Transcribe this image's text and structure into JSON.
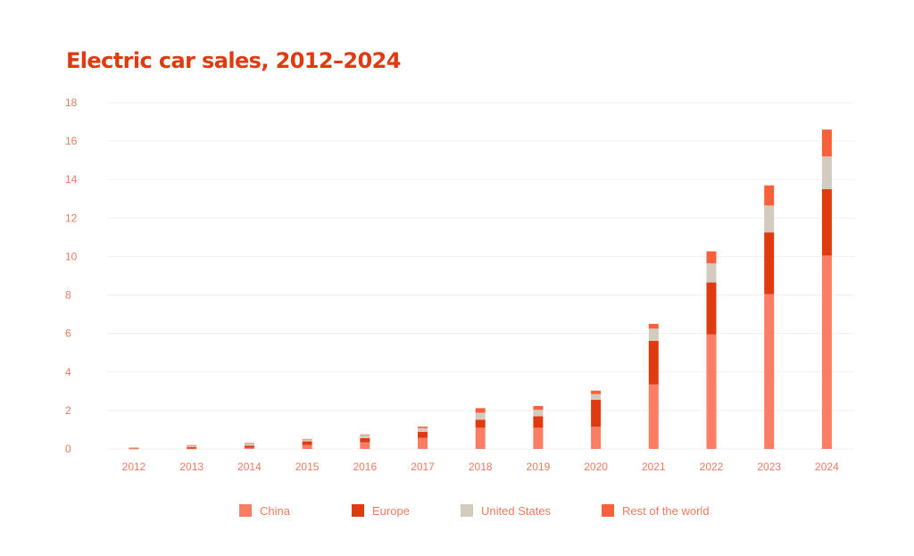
{
  "chart_data": {
    "type": "bar",
    "stacked": true,
    "title": "Electric car sales, 2012–2024",
    "xlabel": "",
    "ylabel": "",
    "ylim": [
      0,
      18
    ],
    "yticks": [
      0,
      2,
      4,
      6,
      8,
      10,
      12,
      14,
      16,
      18
    ],
    "grid": true,
    "legend_position": "bottom",
    "categories": [
      "2012",
      "2013",
      "2014",
      "2015",
      "2016",
      "2017",
      "2018",
      "2019",
      "2020",
      "2021",
      "2022",
      "2023",
      "2024"
    ],
    "series": [
      {
        "name": "China",
        "values": [
          0.01,
          0.02,
          0.07,
          0.21,
          0.34,
          0.58,
          1.1,
          1.1,
          1.15,
          3.35,
          5.95,
          8.05,
          10.05
        ]
      },
      {
        "name": "Europe",
        "values": [
          0.03,
          0.07,
          0.1,
          0.18,
          0.22,
          0.31,
          0.42,
          0.6,
          1.4,
          2.27,
          2.7,
          3.2,
          3.45
        ]
      },
      {
        "name": "United States",
        "values": [
          0.05,
          0.1,
          0.12,
          0.11,
          0.16,
          0.2,
          0.36,
          0.33,
          0.3,
          0.63,
          1.0,
          1.4,
          1.7
        ]
      },
      {
        "name": "Rest of the world",
        "values": [
          0.0,
          0.01,
          0.02,
          0.02,
          0.03,
          0.07,
          0.24,
          0.2,
          0.18,
          0.25,
          0.62,
          1.05,
          1.4
        ]
      }
    ]
  },
  "colors": {
    "title": "#e03a10",
    "axis_text": "#f07a60",
    "grid": "#f1f1f1",
    "China": "#fb7d63",
    "Europe": "#e03a10",
    "United States": "#d3cbbd",
    "Rest of the world": "#f8603c"
  }
}
